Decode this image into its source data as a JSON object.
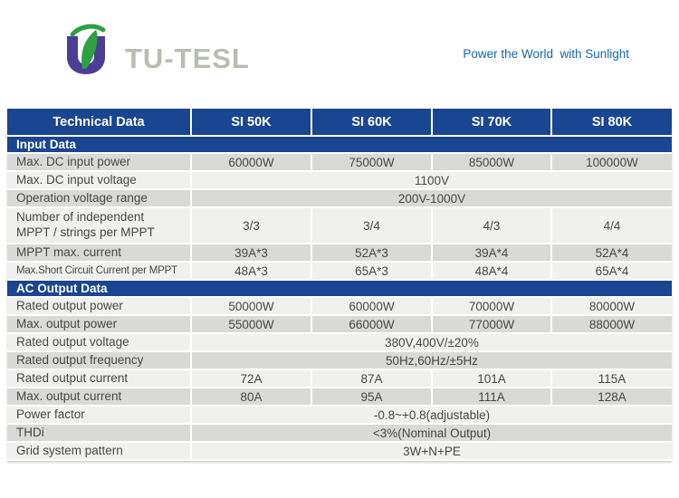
{
  "brand": {
    "logo_text": "TU-TESL",
    "tagline": "Power the World  with Sunlight"
  },
  "colors": {
    "table_blue": "#1a4590",
    "row_gray": "#d9d9d8",
    "row_light": "#f0f0ee",
    "logo_purple": "#4c3d96",
    "logo_green": "#2da03f",
    "logo_text_gray": "#b9bcb0",
    "tagline_blue": "#1565b0"
  },
  "table": {
    "header": [
      "Technical Data",
      "SI 50K",
      "SI 60K",
      "SI 70K",
      "SI 80K"
    ],
    "rows": [
      {
        "type": "section",
        "label": "Input Data"
      },
      {
        "type": "data",
        "label": "Max. DC input power",
        "values": [
          "60000W",
          "75000W",
          "85000W",
          "100000W"
        ],
        "shade": "gray"
      },
      {
        "type": "data",
        "label": "Max. DC input voltage",
        "span": "1100V",
        "shade": "light"
      },
      {
        "type": "data",
        "label": "Operation voltage range",
        "span": "200V-1000V",
        "shade": "gray"
      },
      {
        "type": "data",
        "label": "Number of independent\nMPPT / strings per MPPT",
        "values": [
          "3/3",
          "3/4",
          "4/3",
          "4/4"
        ],
        "shade": "light",
        "tall": true
      },
      {
        "type": "data",
        "label": "MPPT max. current",
        "values": [
          "39A*3",
          "52A*3",
          "39A*4",
          "52A*4"
        ],
        "shade": "gray"
      },
      {
        "type": "data",
        "label": "Max.Short Circuit Current per MPPT",
        "values": [
          "48A*3",
          "65A*3",
          "48A*4",
          "65A*4"
        ],
        "shade": "light",
        "small": true
      },
      {
        "type": "section",
        "label": "AC Output Data"
      },
      {
        "type": "data",
        "label": "Rated output power",
        "values": [
          "50000W",
          "60000W",
          "70000W",
          "80000W"
        ],
        "shade": "light"
      },
      {
        "type": "data",
        "label": "Max. output power",
        "values": [
          "55000W",
          "66000W",
          "77000W",
          "88000W"
        ],
        "shade": "gray"
      },
      {
        "type": "data",
        "label": "Rated output voltage",
        "span": "380V,400V/±20%",
        "shade": "light"
      },
      {
        "type": "data",
        "label": "Rated output frequency",
        "span": "50Hz,60Hz/±5Hz",
        "shade": "gray"
      },
      {
        "type": "data",
        "label": "Rated output current",
        "values": [
          "72A",
          "87A",
          "101A",
          "115A"
        ],
        "shade": "light"
      },
      {
        "type": "data",
        "label": "Max. output current",
        "values": [
          "80A",
          "95A",
          "111A",
          "128A"
        ],
        "shade": "gray"
      },
      {
        "type": "data",
        "label": "Power factor",
        "span": "-0.8~+0.8(adjustable)",
        "shade": "light"
      },
      {
        "type": "data",
        "label": "THDi",
        "span": "<3%(Nominal Output)",
        "shade": "gray"
      },
      {
        "type": "data",
        "label": "Grid system pattern",
        "span": "3W+N+PE",
        "shade": "light"
      }
    ]
  }
}
